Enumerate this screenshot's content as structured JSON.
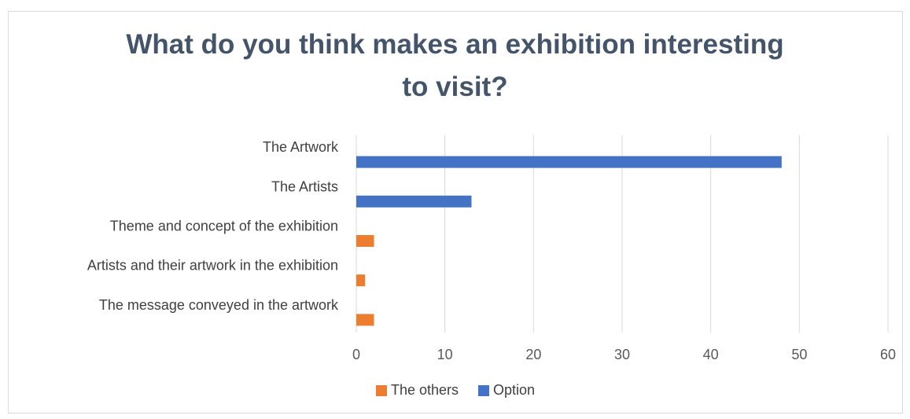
{
  "chart_data": {
    "type": "bar",
    "orientation": "horizontal",
    "title_lines": [
      "What do you think makes an exhibition interesting",
      "to visit?"
    ],
    "categories": [
      "The Artwork",
      "The Artists",
      "Theme and concept of the exhibition",
      "Artists and their artwork in the exhibition",
      "The message conveyed in the artwork"
    ],
    "series": [
      {
        "name": "The others",
        "color": "#ed7d31",
        "values": [
          0,
          0,
          2,
          1,
          2
        ]
      },
      {
        "name": "Option",
        "color": "#4472c4",
        "values": [
          48,
          13,
          0,
          0,
          0
        ]
      }
    ],
    "xlim": [
      0,
      60
    ],
    "xticks": [
      0,
      10,
      20,
      30,
      40,
      50,
      60
    ],
    "grid": true,
    "legend_position": "bottom"
  }
}
